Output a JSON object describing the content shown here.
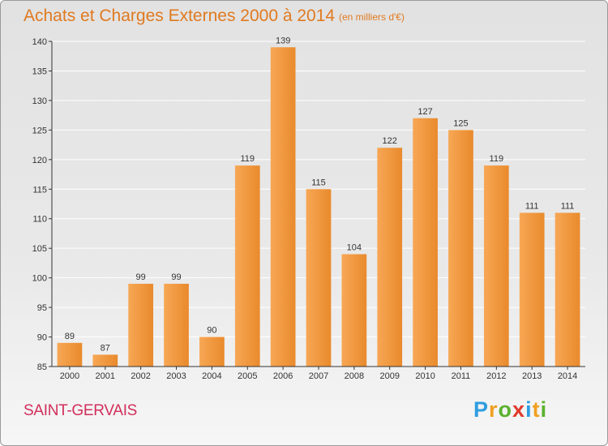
{
  "header": {
    "title": "Achats et Charges Externes 2000 à 2014",
    "subtitle": "(en milliers d'€)"
  },
  "footer": {
    "commune": "SAINT-GERVAIS",
    "logo": {
      "letters": [
        "P",
        "r",
        "o",
        "x",
        "i",
        "t",
        "i"
      ],
      "colors": [
        "#2f9de0",
        "#f0a020",
        "#5bb130",
        "#e03a2c",
        "#2f9de0",
        "#f0a020",
        "#5bb130"
      ]
    }
  },
  "colors": {
    "bar_light": "#f7a755",
    "bar_dark": "#e98a2c",
    "axis": "#333333",
    "grid": "#ffffff"
  },
  "chart_data": {
    "type": "bar",
    "title": "Achats et Charges Externes 2000 à 2014",
    "subtitle": "(en milliers d'€)",
    "categories": [
      "2000",
      "2001",
      "2002",
      "2003",
      "2004",
      "2005",
      "2006",
      "2007",
      "2008",
      "2009",
      "2010",
      "2011",
      "2012",
      "2013",
      "2014"
    ],
    "values": [
      89,
      87,
      99,
      99,
      90,
      119,
      139,
      115,
      104,
      122,
      127,
      125,
      119,
      111,
      111
    ],
    "ylim": [
      85,
      140
    ],
    "yticks": [
      85,
      90,
      95,
      100,
      105,
      110,
      115,
      120,
      125,
      130,
      135,
      140
    ],
    "grid": true,
    "legend": "none"
  }
}
